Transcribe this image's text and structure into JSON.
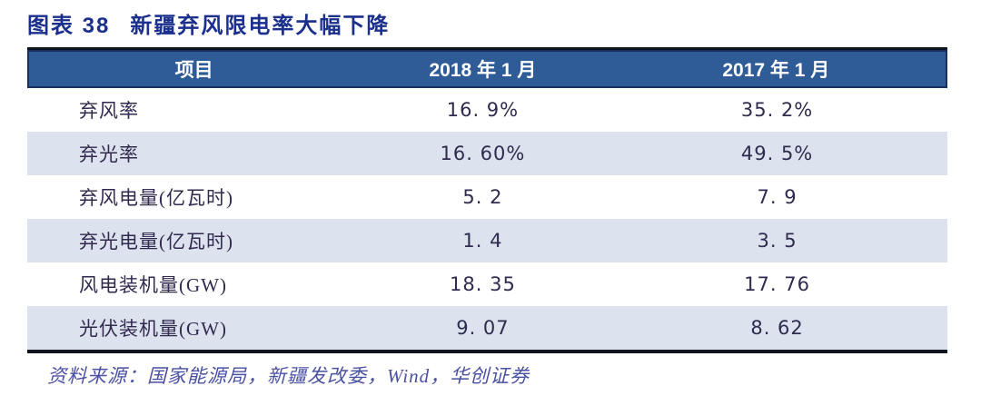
{
  "figure": {
    "label": "图表 38",
    "caption": "新疆弃风限电率大幅下降"
  },
  "table": {
    "headers": [
      "项目",
      "2018 年 1 月",
      "2017 年 1 月"
    ],
    "rows": [
      {
        "label": "弃风率",
        "v2018": "16. 9%",
        "v2017": "35. 2%"
      },
      {
        "label": "弃光率",
        "v2018": "16. 60%",
        "v2017": "49. 5%"
      },
      {
        "label": "弃风电量(亿瓦时)",
        "v2018": "5. 2",
        "v2017": "7. 9"
      },
      {
        "label": "弃光电量(亿瓦时)",
        "v2018": "1. 4",
        "v2017": "3. 5"
      },
      {
        "label": "风电装机量(GW)",
        "v2018": "18. 35",
        "v2017": "17. 76"
      },
      {
        "label": "光伏装机量(GW)",
        "v2018": "9. 07",
        "v2017": "8. 62"
      }
    ]
  },
  "source": "资料来源：国家能源局，新疆发改委，Wind，华创证券",
  "colors": {
    "title_navy": "#1b2f8c",
    "header_bg": "#2f5b96",
    "header_border": "#1a2f5e",
    "row_alt_bg": "#dce3ef",
    "cell_text": "#32294e",
    "source_text": "#4a50a2",
    "rule_dark": "#0e1420"
  },
  "chart_data": {
    "type": "table",
    "title": "图表 38 新疆弃风限电率大幅下降",
    "columns": [
      "项目",
      "2018 年 1 月",
      "2017 年 1 月"
    ],
    "categories": [
      "弃风率",
      "弃光率",
      "弃风电量(亿瓦时)",
      "弃光电量(亿瓦时)",
      "风电装机量(GW)",
      "光伏装机量(GW)"
    ],
    "series": [
      {
        "name": "2018 年 1 月",
        "values": [
          16.9,
          16.6,
          5.2,
          1.4,
          18.35,
          9.07
        ]
      },
      {
        "name": "2017 年 1 月",
        "values": [
          35.2,
          49.5,
          7.9,
          3.5,
          17.76,
          8.62
        ]
      }
    ],
    "rows": [
      [
        "弃风率",
        "16.9%",
        "35.2%"
      ],
      [
        "弃光率",
        "16.60%",
        "49.5%"
      ],
      [
        "弃风电量(亿瓦时)",
        "5.2",
        "7.9"
      ],
      [
        "弃光电量(亿瓦时)",
        "1.4",
        "3.5"
      ],
      [
        "风电装机量(GW)",
        "18.35",
        "17.76"
      ],
      [
        "光伏装机量(GW)",
        "9.07",
        "8.62"
      ]
    ],
    "source_entities": "国家能源局，新疆发改委，Wind，华创证券"
  }
}
